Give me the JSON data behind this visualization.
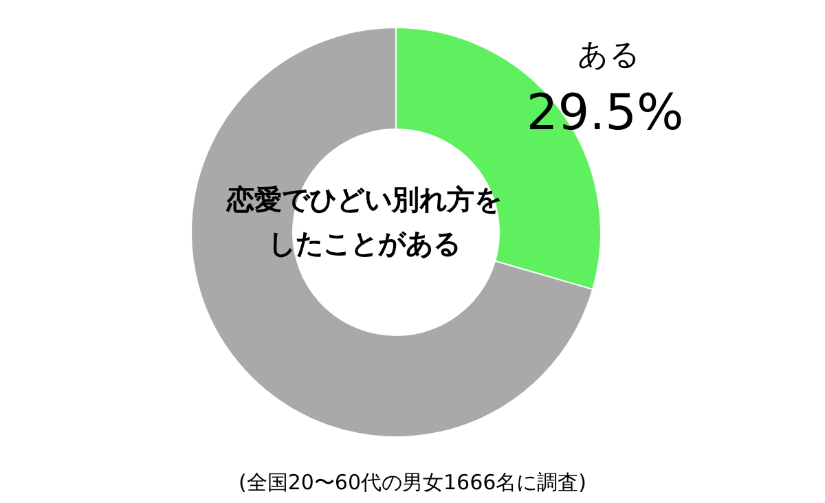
{
  "chart_data": {
    "type": "donut",
    "title": "恋愛でひどい別れ方をしたことがある",
    "categories": [
      "ある",
      null
    ],
    "values": [
      29.5,
      70.5
    ],
    "value_labels": [
      "29.5%",
      null
    ],
    "colors": [
      "#5ef05e",
      "#a9a9a9"
    ],
    "annotations": [
      "(全国20〜60代の男女1666名に調査)"
    ]
  }
}
